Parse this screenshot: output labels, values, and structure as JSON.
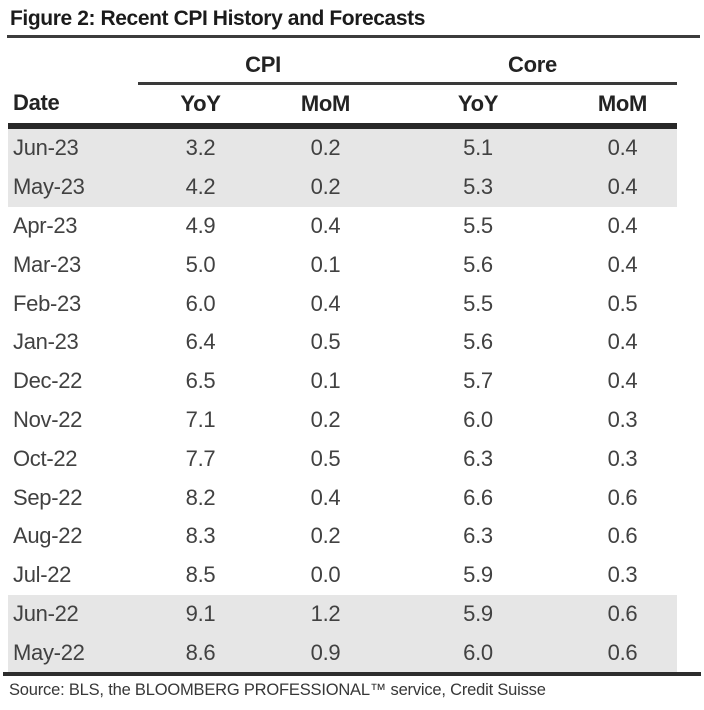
{
  "figure": {
    "title": "Figure 2: Recent CPI History and Forecasts",
    "source": "Source: BLS, the BLOOMBERG PROFESSIONAL™ service, Credit Suisse"
  },
  "table": {
    "groups": [
      "CPI",
      "Core"
    ],
    "columns": [
      "Date",
      "YoY",
      "MoM",
      "YoY",
      "MoM"
    ],
    "rows": [
      {
        "date": "Jun-23",
        "cpi_yoy": "3.2",
        "cpi_mom": "0.2",
        "core_yoy": "5.1",
        "core_mom": "0.4",
        "shaded": true
      },
      {
        "date": "May-23",
        "cpi_yoy": "4.2",
        "cpi_mom": "0.2",
        "core_yoy": "5.3",
        "core_mom": "0.4",
        "shaded": true
      },
      {
        "date": "Apr-23",
        "cpi_yoy": "4.9",
        "cpi_mom": "0.4",
        "core_yoy": "5.5",
        "core_mom": "0.4",
        "shaded": false
      },
      {
        "date": "Mar-23",
        "cpi_yoy": "5.0",
        "cpi_mom": "0.1",
        "core_yoy": "5.6",
        "core_mom": "0.4",
        "shaded": false
      },
      {
        "date": "Feb-23",
        "cpi_yoy": "6.0",
        "cpi_mom": "0.4",
        "core_yoy": "5.5",
        "core_mom": "0.5",
        "shaded": false
      },
      {
        "date": "Jan-23",
        "cpi_yoy": "6.4",
        "cpi_mom": "0.5",
        "core_yoy": "5.6",
        "core_mom": "0.4",
        "shaded": false
      },
      {
        "date": "Dec-22",
        "cpi_yoy": "6.5",
        "cpi_mom": "0.1",
        "core_yoy": "5.7",
        "core_mom": "0.4",
        "shaded": false
      },
      {
        "date": "Nov-22",
        "cpi_yoy": "7.1",
        "cpi_mom": "0.2",
        "core_yoy": "6.0",
        "core_mom": "0.3",
        "shaded": false
      },
      {
        "date": "Oct-22",
        "cpi_yoy": "7.7",
        "cpi_mom": "0.5",
        "core_yoy": "6.3",
        "core_mom": "0.3",
        "shaded": false
      },
      {
        "date": "Sep-22",
        "cpi_yoy": "8.2",
        "cpi_mom": "0.4",
        "core_yoy": "6.6",
        "core_mom": "0.6",
        "shaded": false
      },
      {
        "date": "Aug-22",
        "cpi_yoy": "8.3",
        "cpi_mom": "0.2",
        "core_yoy": "6.3",
        "core_mom": "0.6",
        "shaded": false
      },
      {
        "date": "Jul-22",
        "cpi_yoy": "8.5",
        "cpi_mom": "0.0",
        "core_yoy": "5.9",
        "core_mom": "0.3",
        "shaded": false
      },
      {
        "date": "Jun-22",
        "cpi_yoy": "9.1",
        "cpi_mom": "1.2",
        "core_yoy": "5.9",
        "core_mom": "0.6",
        "shaded": true
      },
      {
        "date": "May-22",
        "cpi_yoy": "8.6",
        "cpi_mom": "0.9",
        "core_yoy": "6.0",
        "core_mom": "0.6",
        "shaded": true
      }
    ]
  },
  "colors": {
    "row_shade": "#e6e6e6",
    "rule_dark": "#2d2d2d",
    "title_text": "#1b1b1b",
    "body_text": "#414141"
  }
}
